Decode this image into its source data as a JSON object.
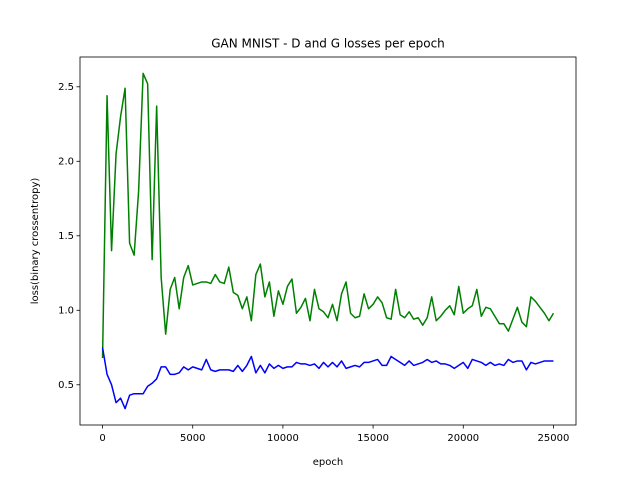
{
  "chart_data": {
    "type": "line",
    "title": "GAN MNIST - D and G losses per epoch",
    "x_label": "epoch",
    "y_label": "loss(binary crossentropy)",
    "x": [
      0,
      250,
      500,
      750,
      1000,
      1250,
      1500,
      1750,
      2000,
      2250,
      2500,
      2750,
      3000,
      3250,
      3500,
      3750,
      4000,
      4250,
      4500,
      4750,
      5000,
      5250,
      5500,
      5750,
      6000,
      6250,
      6500,
      6750,
      7000,
      7250,
      7500,
      7750,
      8000,
      8250,
      8500,
      8750,
      9000,
      9250,
      9500,
      9750,
      10000,
      10250,
      10500,
      10750,
      11000,
      11250,
      11500,
      11750,
      12000,
      12250,
      12500,
      12750,
      13000,
      13250,
      13500,
      13750,
      14000,
      14250,
      14500,
      14750,
      15000,
      15250,
      15500,
      15750,
      16000,
      16250,
      16500,
      16750,
      17000,
      17250,
      17500,
      17750,
      18000,
      18250,
      18500,
      18750,
      19000,
      19250,
      19500,
      19750,
      20000,
      20250,
      20500,
      20750,
      21000,
      21250,
      21500,
      21750,
      22000,
      22250,
      22500,
      22750,
      23000,
      23250,
      23500,
      23750,
      24000,
      24250,
      24500,
      24750,
      25000
    ],
    "series": [
      {
        "color": "#008000",
        "values": [
          0.68,
          2.44,
          1.4,
          2.05,
          2.3,
          2.49,
          1.45,
          1.37,
          1.8,
          2.59,
          2.52,
          1.34,
          2.37,
          1.22,
          0.84,
          1.14,
          1.22,
          1.01,
          1.22,
          1.3,
          1.17,
          1.18,
          1.19,
          1.19,
          1.18,
          1.24,
          1.19,
          1.18,
          1.29,
          1.12,
          1.1,
          1.01,
          1.09,
          0.93,
          1.24,
          1.31,
          1.09,
          1.19,
          0.96,
          1.13,
          1.04,
          1.16,
          1.21,
          0.98,
          1.02,
          1.08,
          0.93,
          1.14,
          1.01,
          0.99,
          0.95,
          1.04,
          0.93,
          1.11,
          1.19,
          0.98,
          0.95,
          0.96,
          1.11,
          1.01,
          1.04,
          1.09,
          1.05,
          0.95,
          0.94,
          1.14,
          0.97,
          0.95,
          0.99,
          0.94,
          0.95,
          0.9,
          0.95,
          1.09,
          0.93,
          0.96,
          1.0,
          1.03,
          0.97,
          1.16,
          0.98,
          1.01,
          1.03,
          1.14,
          0.96,
          1.02,
          1.01,
          0.96,
          0.91,
          0.91,
          0.86,
          0.94,
          1.02,
          0.92,
          0.89,
          1.09,
          1.06,
          1.02,
          0.98,
          0.93,
          0.98
        ]
      },
      {
        "color": "#0000ff",
        "values": [
          0.75,
          0.57,
          0.5,
          0.38,
          0.41,
          0.34,
          0.43,
          0.44,
          0.44,
          0.44,
          0.49,
          0.51,
          0.54,
          0.62,
          0.62,
          0.57,
          0.57,
          0.58,
          0.62,
          0.6,
          0.62,
          0.61,
          0.6,
          0.67,
          0.6,
          0.59,
          0.6,
          0.6,
          0.6,
          0.59,
          0.63,
          0.59,
          0.63,
          0.69,
          0.58,
          0.63,
          0.58,
          0.64,
          0.61,
          0.63,
          0.61,
          0.62,
          0.62,
          0.65,
          0.64,
          0.64,
          0.63,
          0.64,
          0.61,
          0.65,
          0.62,
          0.65,
          0.62,
          0.66,
          0.61,
          0.62,
          0.63,
          0.62,
          0.65,
          0.65,
          0.66,
          0.67,
          0.63,
          0.63,
          0.69,
          0.67,
          0.65,
          0.63,
          0.66,
          0.63,
          0.64,
          0.65,
          0.67,
          0.65,
          0.66,
          0.64,
          0.64,
          0.63,
          0.61,
          0.63,
          0.65,
          0.61,
          0.67,
          0.66,
          0.65,
          0.63,
          0.65,
          0.63,
          0.64,
          0.63,
          0.67,
          0.65,
          0.66,
          0.66,
          0.6,
          0.65,
          0.64,
          0.65,
          0.66,
          0.66,
          0.66
        ]
      }
    ],
    "xlim": [
      -1250,
      26250
    ],
    "xticks": [
      0,
      5000,
      10000,
      15000,
      20000,
      25000
    ],
    "ylim": [
      0.23,
      2.7
    ],
    "yticks": [
      0.5,
      {
        "value": 1,
        "label": "1.0"
      },
      1.5,
      {
        "value": 2,
        "label": "2.0"
      },
      2.5
    ]
  }
}
